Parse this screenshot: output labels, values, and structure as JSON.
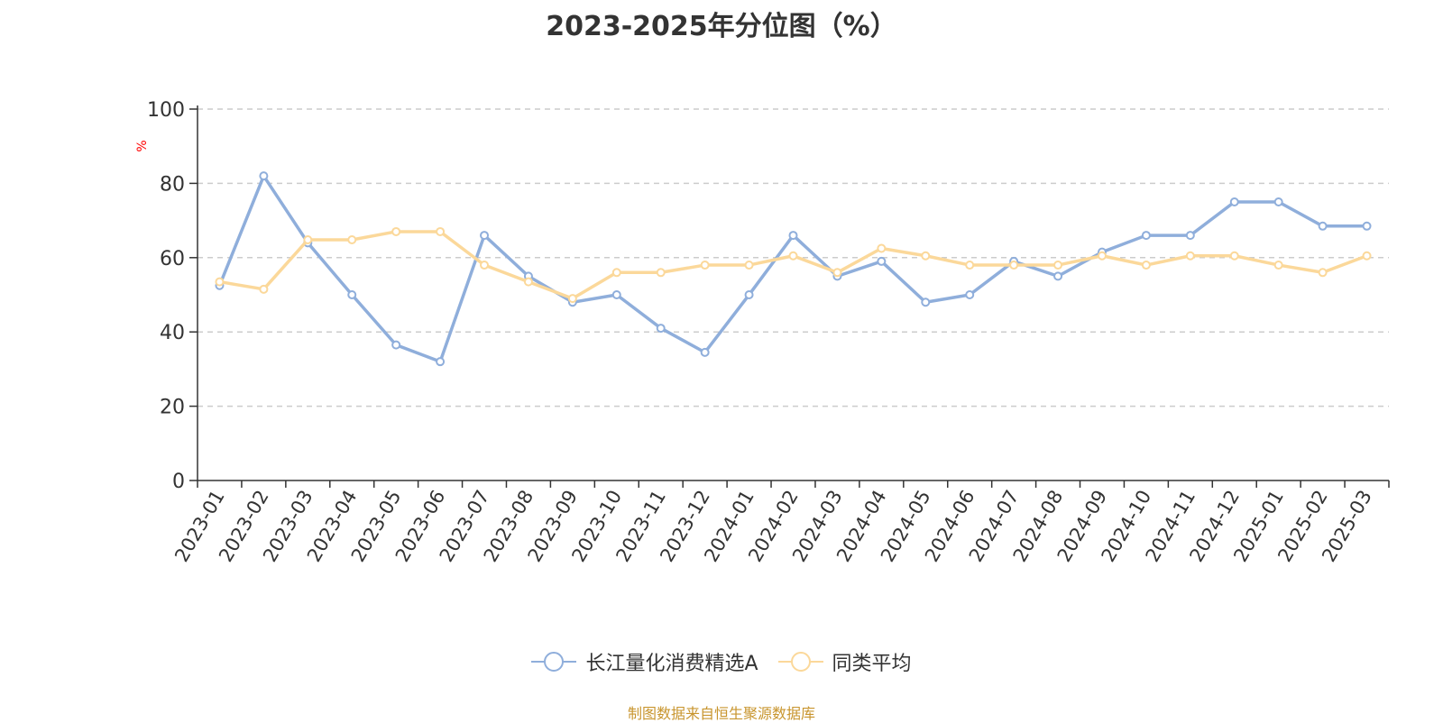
{
  "chart_data": {
    "type": "line",
    "title": "2023-2025年分位图（%）",
    "unit": "%",
    "ylim": [
      0,
      100
    ],
    "yticks": [
      "0",
      "20",
      "40",
      "60",
      "80",
      "100"
    ],
    "grid": true,
    "legend_position": "bottom",
    "categories": [
      "2023-01",
      "2023-02",
      "2023-03",
      "2023-04",
      "2023-05",
      "2023-06",
      "2023-07",
      "2023-08",
      "2023-09",
      "2023-10",
      "2023-11",
      "2023-12",
      "2024-01",
      "2024-02",
      "2024-03",
      "2024-04",
      "2024-05",
      "2024-06",
      "2024-07",
      "2024-08",
      "2024-09",
      "2024-10",
      "2024-11",
      "2024-12",
      "2025-01",
      "2025-02",
      "2025-03"
    ],
    "series": [
      {
        "name": "长江量化消费精选A",
        "color": "#8faedb",
        "values": [
          52.5,
          82,
          64,
          50,
          36.5,
          32,
          66,
          55,
          48,
          50,
          41,
          34.5,
          50,
          66,
          55,
          59,
          48,
          50,
          59,
          55,
          61.5,
          66,
          66,
          75,
          75,
          68.5,
          68.5
        ]
      },
      {
        "name": "同类平均",
        "color": "#fbd89a",
        "values": [
          53.5,
          51.5,
          64.8,
          64.8,
          67,
          67,
          58,
          53.5,
          49,
          56,
          56,
          58,
          58,
          60.5,
          56,
          62.5,
          60.5,
          58,
          58,
          58,
          60.5,
          58,
          60.5,
          60.5,
          58,
          56,
          60.5
        ]
      }
    ]
  },
  "source": "制图数据来自恒生聚源数据库"
}
